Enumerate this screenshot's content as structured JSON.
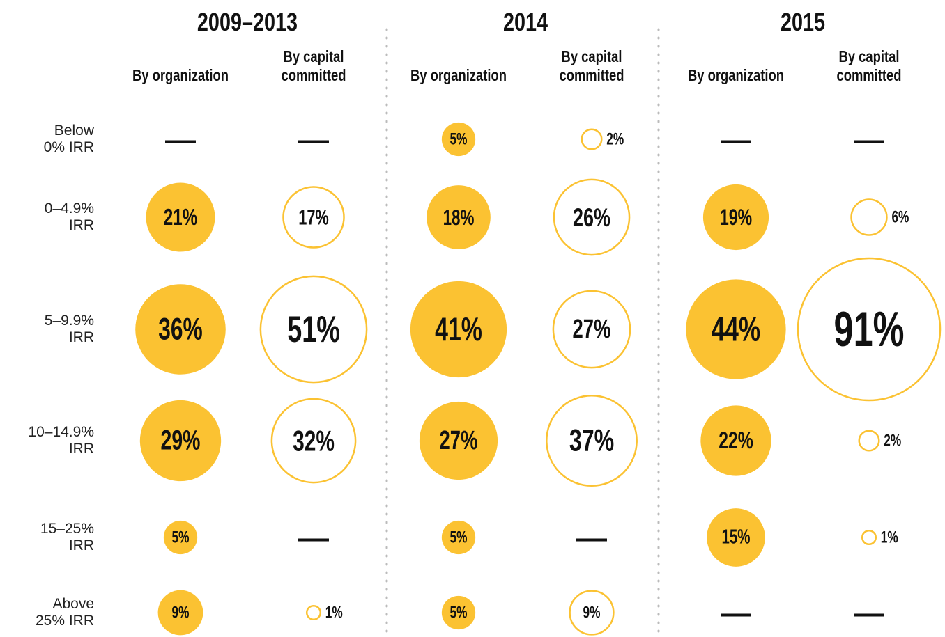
{
  "chart_data": {
    "type": "bubble",
    "categories": [
      "Below\n0% IRR",
      "0–4.9%\nIRR",
      "5–9.9%\nIRR",
      "10–14.9%\nIRR",
      "15–25%\nIRR",
      "Above\n25% IRR"
    ],
    "null_label": "—",
    "groups": [
      {
        "title": "2009–2013",
        "series": [
          {
            "name": "By organization",
            "color": "#fbc232",
            "filled": true,
            "values": [
              null,
              21,
              36,
              29,
              5,
              9
            ],
            "value_labels": [
              null,
              "21%",
              "36%",
              "29%",
              "5%",
              "9%"
            ]
          },
          {
            "name": "By capital\ncommitted",
            "color": "#fbc232",
            "filled": false,
            "values": [
              null,
              17,
              51,
              32,
              null,
              1
            ],
            "value_labels": [
              null,
              "17%",
              "51%",
              "32%",
              null,
              "1%"
            ]
          }
        ]
      },
      {
        "title": "2014",
        "series": [
          {
            "name": "By organization",
            "color": "#fbc232",
            "filled": true,
            "values": [
              5,
              18,
              41,
              27,
              5,
              5
            ],
            "value_labels": [
              "5%",
              "18%",
              "41%",
              "27%",
              "5%",
              "5%"
            ]
          },
          {
            "name": "By capital\ncommitted",
            "color": "#fbc232",
            "filled": false,
            "values": [
              2,
              26,
              27,
              37,
              null,
              9
            ],
            "value_labels": [
              "2%",
              "26%",
              "27%",
              "37%",
              null,
              "9%"
            ]
          }
        ]
      },
      {
        "title": "2015",
        "series": [
          {
            "name": "By organization",
            "color": "#fbc232",
            "filled": true,
            "values": [
              null,
              19,
              44,
              22,
              15,
              null
            ],
            "value_labels": [
              null,
              "19%",
              "44%",
              "22%",
              "15%",
              null
            ]
          },
          {
            "name": "By capital\ncommitted",
            "color": "#fbc232",
            "filled": false,
            "values": [
              null,
              6,
              91,
              2,
              1,
              null
            ],
            "value_labels": [
              null,
              "6%",
              "91%",
              "2%",
              "1%",
              null
            ]
          }
        ]
      }
    ]
  }
}
